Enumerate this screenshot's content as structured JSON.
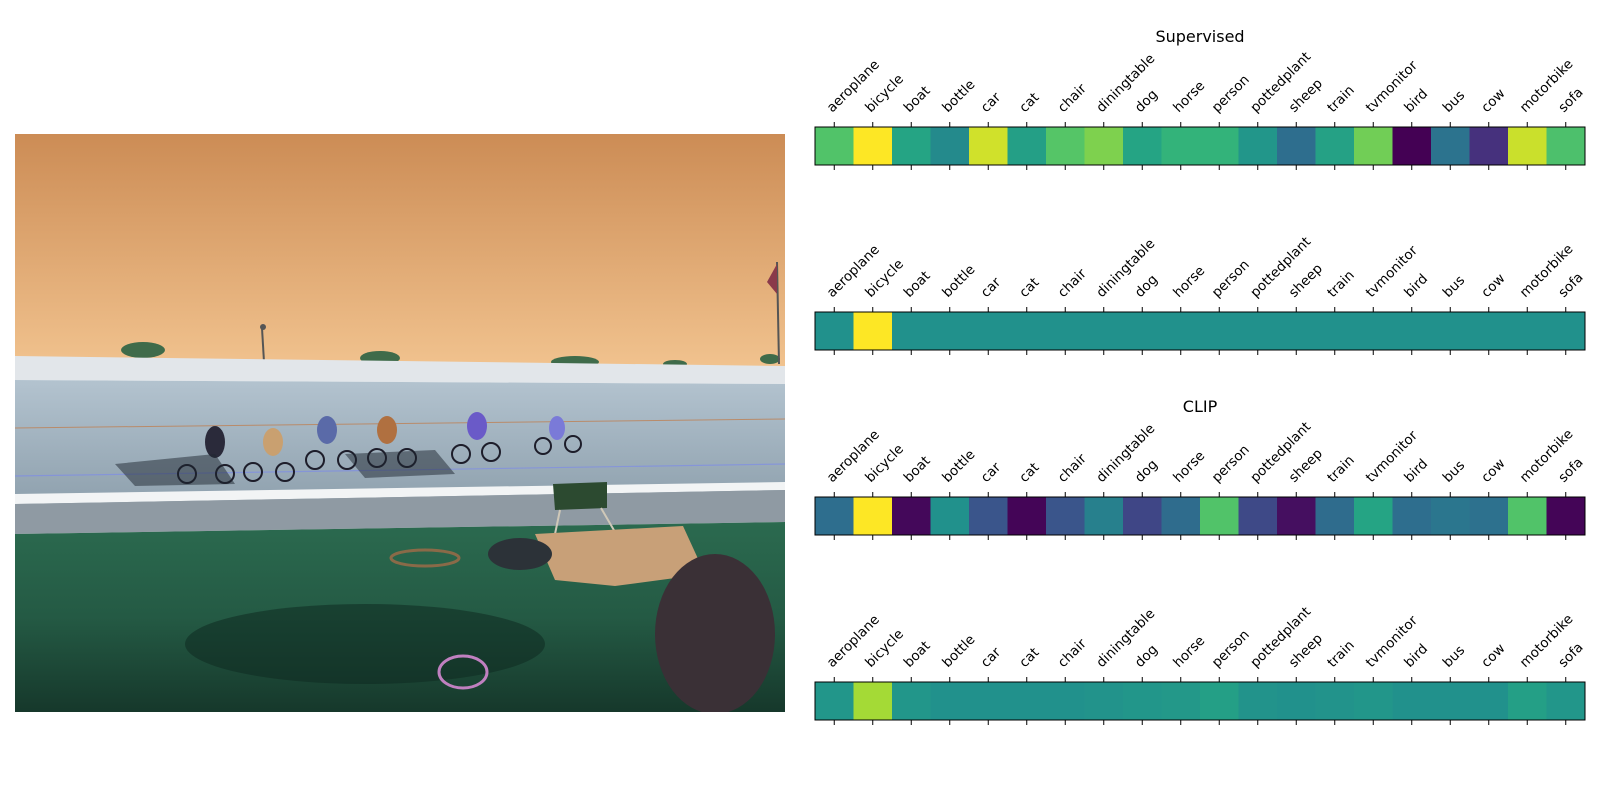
{
  "chart_data": [
    {
      "type": "heatmap",
      "title": "Supervised",
      "categories": [
        "aeroplane",
        "bicycle",
        "boat",
        "bottle",
        "car",
        "cat",
        "chair",
        "diningtable",
        "dog",
        "horse",
        "person",
        "pottedplant",
        "sheep",
        "train",
        "tvmonitor",
        "bird",
        "bus",
        "cow",
        "motorbike",
        "sofa"
      ],
      "values": [
        0.72,
        1.0,
        0.58,
        0.47,
        0.93,
        0.56,
        0.73,
        0.8,
        0.58,
        0.65,
        0.65,
        0.52,
        0.36,
        0.57,
        0.78,
        0.0,
        0.38,
        0.14,
        0.92,
        0.71
      ],
      "colormap": "viridis",
      "vlim": [
        0,
        1
      ]
    },
    {
      "type": "heatmap",
      "title": "",
      "categories": [
        "aeroplane",
        "bicycle",
        "boat",
        "bottle",
        "car",
        "cat",
        "chair",
        "diningtable",
        "dog",
        "horse",
        "person",
        "pottedplant",
        "sheep",
        "train",
        "tvmonitor",
        "bird",
        "bus",
        "cow",
        "motorbike",
        "sofa"
      ],
      "values": [
        0.5,
        1.0,
        0.5,
        0.5,
        0.5,
        0.5,
        0.5,
        0.5,
        0.5,
        0.5,
        0.5,
        0.5,
        0.5,
        0.5,
        0.5,
        0.5,
        0.5,
        0.5,
        0.5,
        0.5
      ],
      "colormap": "viridis",
      "vlim": [
        0,
        1
      ]
    },
    {
      "type": "heatmap",
      "title": "CLIP",
      "categories": [
        "aeroplane",
        "bicycle",
        "boat",
        "bottle",
        "car",
        "cat",
        "chair",
        "diningtable",
        "dog",
        "horse",
        "person",
        "pottedplant",
        "sheep",
        "train",
        "tvmonitor",
        "bird",
        "bus",
        "cow",
        "motorbike",
        "sofa"
      ],
      "values": [
        0.36,
        1.0,
        0.02,
        0.5,
        0.26,
        0.01,
        0.26,
        0.43,
        0.21,
        0.35,
        0.72,
        0.22,
        0.04,
        0.35,
        0.58,
        0.36,
        0.39,
        0.37,
        0.72,
        0.01
      ],
      "colormap": "viridis",
      "vlim": [
        0,
        1
      ]
    },
    {
      "type": "heatmap",
      "title": "",
      "categories": [
        "aeroplane",
        "bicycle",
        "boat",
        "bottle",
        "car",
        "cat",
        "chair",
        "diningtable",
        "dog",
        "horse",
        "person",
        "pottedplant",
        "sheep",
        "train",
        "tvmonitor",
        "bird",
        "bus",
        "cow",
        "motorbike",
        "sofa"
      ],
      "values": [
        0.52,
        0.86,
        0.52,
        0.5,
        0.5,
        0.5,
        0.5,
        0.51,
        0.52,
        0.53,
        0.56,
        0.51,
        0.5,
        0.51,
        0.52,
        0.5,
        0.5,
        0.5,
        0.56,
        0.52
      ],
      "colormap": "viridis",
      "vlim": [
        0,
        1
      ]
    }
  ]
}
